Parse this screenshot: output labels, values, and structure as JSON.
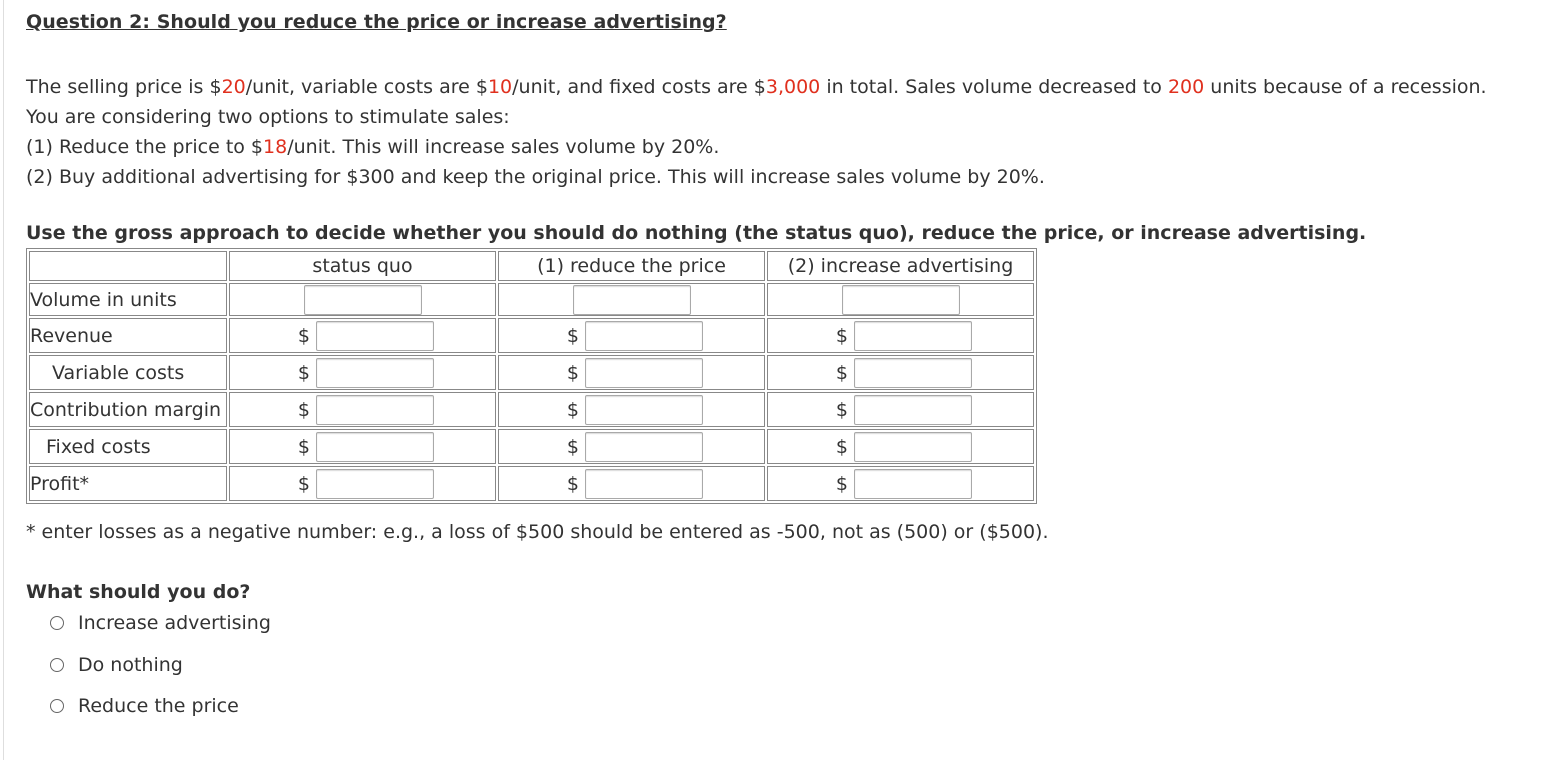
{
  "title": "Question 2: Should you reduce the price or increase advertising?",
  "intro": {
    "line1": {
      "a": "The selling price is $",
      "price": "20",
      "b": "/unit, variable costs are $",
      "varcost": "10",
      "c": "/unit, and fixed costs are $",
      "fixed": "3,000",
      "d": " in total. Sales volume decreased to ",
      "volume": "200",
      "e": " units because of a recession."
    },
    "line2": "You are considering two options to stimulate sales:",
    "line3": {
      "a": "(1) Reduce the price to $",
      "newprice": "18",
      "b": "/unit. This will increase sales volume by 20%."
    },
    "line4": "(2) Buy additional advertising for $300 and keep the original price. This will increase sales volume by 20%."
  },
  "instruction": "Use the gross approach to decide whether you should do nothing (the status quo), reduce the price, or increase advertising.",
  "table": {
    "headers": [
      "status quo",
      "(1) reduce the price",
      "(2) increase advertising"
    ],
    "currency": "$",
    "rows": [
      "Volume in units",
      "Revenue",
      "Variable costs",
      "Contribution margin",
      "Fixed costs",
      "Profit*"
    ]
  },
  "note": "* enter losses as a negative number: e.g., a loss of $500 should be entered as -500, not as (500) or ($500).",
  "question": "What should you do?",
  "options": [
    "Increase advertising",
    "Do nothing",
    "Reduce the price"
  ],
  "colors": {
    "highlight": "#e0301e",
    "text": "#333333"
  }
}
